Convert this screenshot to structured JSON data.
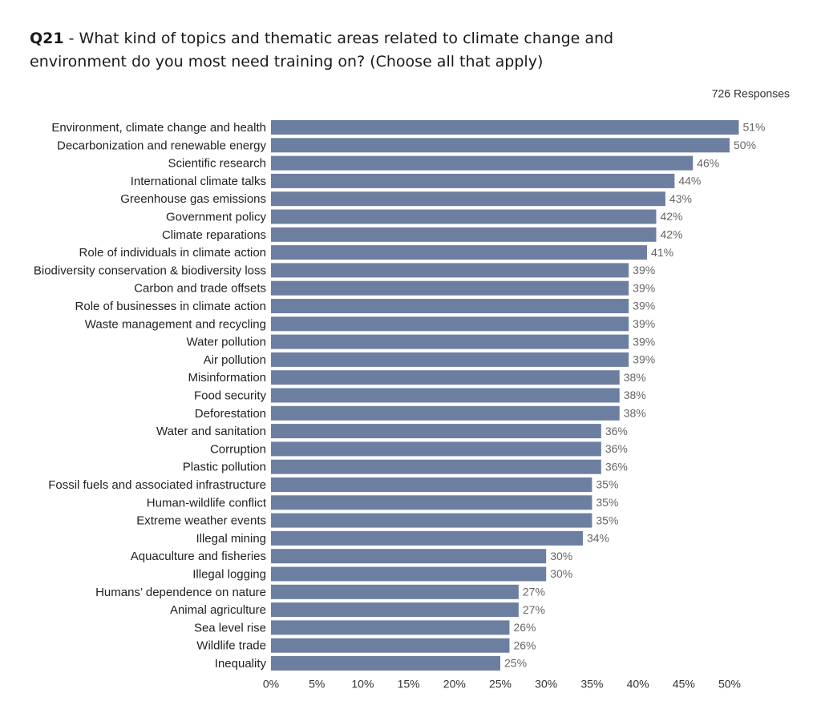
{
  "chart_data": {
    "type": "barh",
    "title_prefix": "Q21",
    "title": "- What kind of topics and thematic areas related to climate change and environment do you most need training on? (Choose all that apply)",
    "subtitle": "726 Responses",
    "categories": [
      "Environment, climate change and health",
      "Decarbonization and renewable energy",
      "Scientific research",
      "International climate talks",
      "Greenhouse gas emissions",
      "Government policy",
      "Climate reparations",
      "Role of individuals in climate action",
      "Biodiversity conservation & biodiversity loss",
      "Carbon and trade offsets",
      "Role of businesses in climate action",
      "Waste management and recycling",
      "Water pollution",
      "Air pollution",
      "Misinformation",
      "Food security",
      "Deforestation",
      "Water and sanitation",
      "Corruption",
      "Plastic pollution",
      "Fossil fuels and associated infrastructure",
      "Human-wildlife conflict",
      "Extreme weather events",
      "Illegal mining",
      "Aquaculture and fisheries",
      "Illegal logging",
      "Humans’ dependence on nature",
      "Animal agriculture",
      "Sea level rise",
      "Wildlife trade",
      "Inequality"
    ],
    "values": [
      51,
      50,
      46,
      44,
      43,
      42,
      42,
      41,
      39,
      39,
      39,
      39,
      39,
      39,
      38,
      38,
      38,
      36,
      36,
      36,
      35,
      35,
      35,
      34,
      30,
      30,
      27,
      27,
      26,
      26,
      25
    ],
    "value_labels": [
      "51%",
      "50%",
      "46%",
      "44%",
      "43%",
      "42%",
      "42%",
      "41%",
      "39%",
      "39%",
      "39%",
      "39%",
      "39%",
      "39%",
      "38%",
      "38%",
      "38%",
      "36%",
      "36%",
      "36%",
      "35%",
      "35%",
      "35%",
      "34%",
      "30%",
      "30%",
      "27%",
      "27%",
      "26%",
      "26%",
      "25%"
    ],
    "color": "#6d7fa0",
    "xlim": [
      0,
      50
    ],
    "xticks": [
      {
        "value": 0,
        "label": "0%"
      },
      {
        "value": 5,
        "label": "5%"
      },
      {
        "value": 10,
        "label": "10%"
      },
      {
        "value": 15,
        "label": "15%"
      },
      {
        "value": 20,
        "label": "20%"
      },
      {
        "value": 25,
        "label": "25%"
      },
      {
        "value": 30,
        "label": "30%"
      },
      {
        "value": 35,
        "label": "35%"
      },
      {
        "value": 40,
        "label": "40%"
      },
      {
        "value": 45,
        "label": "45%"
      },
      {
        "value": 50,
        "label": "50%"
      }
    ],
    "grid": false
  }
}
